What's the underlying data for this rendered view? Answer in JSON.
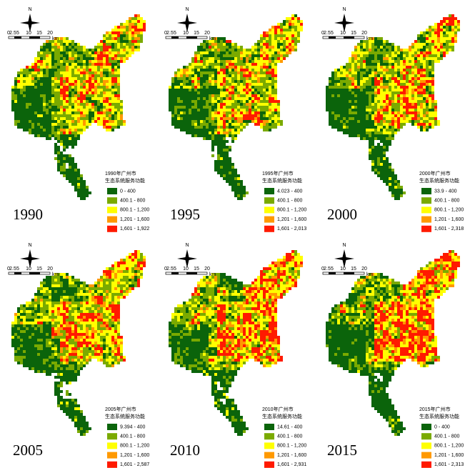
{
  "north": "N",
  "scale": [
    "0",
    "2.5",
    "5",
    "10",
    "15",
    "20"
  ],
  "scale_unit": "km",
  "legend_colors": [
    "#0b640b",
    "#7aaa00",
    "#ffff00",
    "#ff9900",
    "#ff1a00"
  ],
  "panels": [
    {
      "year": "1990",
      "legend_title": [
        "1990年广州市",
        "生态系统服务功能"
      ],
      "legend": [
        "0 - 400",
        "400.1 - 800",
        "800.1 - 1,200",
        "1,201 - 1,600",
        "1,601 - 1,922"
      ]
    },
    {
      "year": "1995",
      "legend_title": [
        "1995年广州市",
        "生态系统服务功能"
      ],
      "legend": [
        "4.023 - 400",
        "400.1 - 800",
        "800.1 - 1,200",
        "1,201 - 1,600",
        "1,601 - 2,013"
      ]
    },
    {
      "year": "2000",
      "legend_title": [
        "2000年广州市",
        "生态系统服务功能"
      ],
      "legend": [
        "33.9 - 400",
        "400.1 - 800",
        "800.1 - 1,200",
        "1,201 - 1,600",
        "1,601 - 2,318"
      ]
    },
    {
      "year": "2005",
      "legend_title": [
        "2005年广州市",
        "生态系统服务功能"
      ],
      "legend": [
        "9.394 - 400",
        "400.1 - 800",
        "800.1 - 1,200",
        "1,201 - 1,600",
        "1,601 - 2,587"
      ]
    },
    {
      "year": "2010",
      "legend_title": [
        "2010年广州市",
        "生态系统服务功能"
      ],
      "legend": [
        "14.61 - 400",
        "400.1 - 800",
        "800.1 - 1,200",
        "1,201 - 1,600",
        "1,601 - 2,931"
      ]
    },
    {
      "year": "2015",
      "legend_title": [
        "2015年广州市",
        "生态系统服务功能"
      ],
      "legend": [
        "0 - 400",
        "400.1 - 800",
        "800.1 - 1,200",
        "1,201 - 1,600",
        "1,601 - 2,313"
      ]
    }
  ]
}
